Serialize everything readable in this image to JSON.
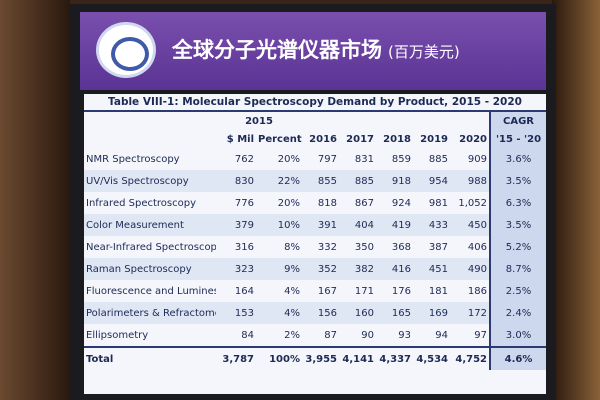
{
  "header": {
    "title": "全球分子光谱仪器市场",
    "unit": "(百万美元)"
  },
  "table": {
    "title": "Table VIII-1: Molecular Spectroscopy Demand by Product, 2015 - 2020",
    "group_header": "2015",
    "cagr_header": "CAGR",
    "columns": [
      "$ Mil",
      "Percent",
      "2016",
      "2017",
      "2018",
      "2019",
      "2020",
      "'15 - '20"
    ],
    "rows": [
      [
        "NMR Spectroscopy",
        "762",
        "20%",
        "797",
        "831",
        "859",
        "885",
        "909",
        "3.6%"
      ],
      [
        "UV/Vis Spectroscopy",
        "830",
        "22%",
        "855",
        "885",
        "918",
        "954",
        "988",
        "3.5%"
      ],
      [
        "Infrared Spectroscopy",
        "776",
        "20%",
        "818",
        "867",
        "924",
        "981",
        "1,052",
        "6.3%"
      ],
      [
        "Color Measurement",
        "379",
        "10%",
        "391",
        "404",
        "419",
        "433",
        "450",
        "3.5%"
      ],
      [
        "Near-Infrared Spectroscopy",
        "316",
        "8%",
        "332",
        "350",
        "368",
        "387",
        "406",
        "5.2%"
      ],
      [
        "Raman Spectroscopy",
        "323",
        "9%",
        "352",
        "382",
        "416",
        "451",
        "490",
        "8.7%"
      ],
      [
        "Fluorescence and Luminescence",
        "164",
        "4%",
        "167",
        "171",
        "176",
        "181",
        "186",
        "2.5%"
      ],
      [
        "Polarimeters & Refractometers",
        "153",
        "4%",
        "156",
        "160",
        "165",
        "169",
        "172",
        "2.4%"
      ],
      [
        "Ellipsometry",
        "84",
        "2%",
        "87",
        "90",
        "93",
        "94",
        "97",
        "3.0%"
      ],
      [
        "Total",
        "3,787",
        "100%",
        "3,955",
        "4,141",
        "4,337",
        "4,534",
        "4,752",
        "4.6%"
      ]
    ]
  }
}
